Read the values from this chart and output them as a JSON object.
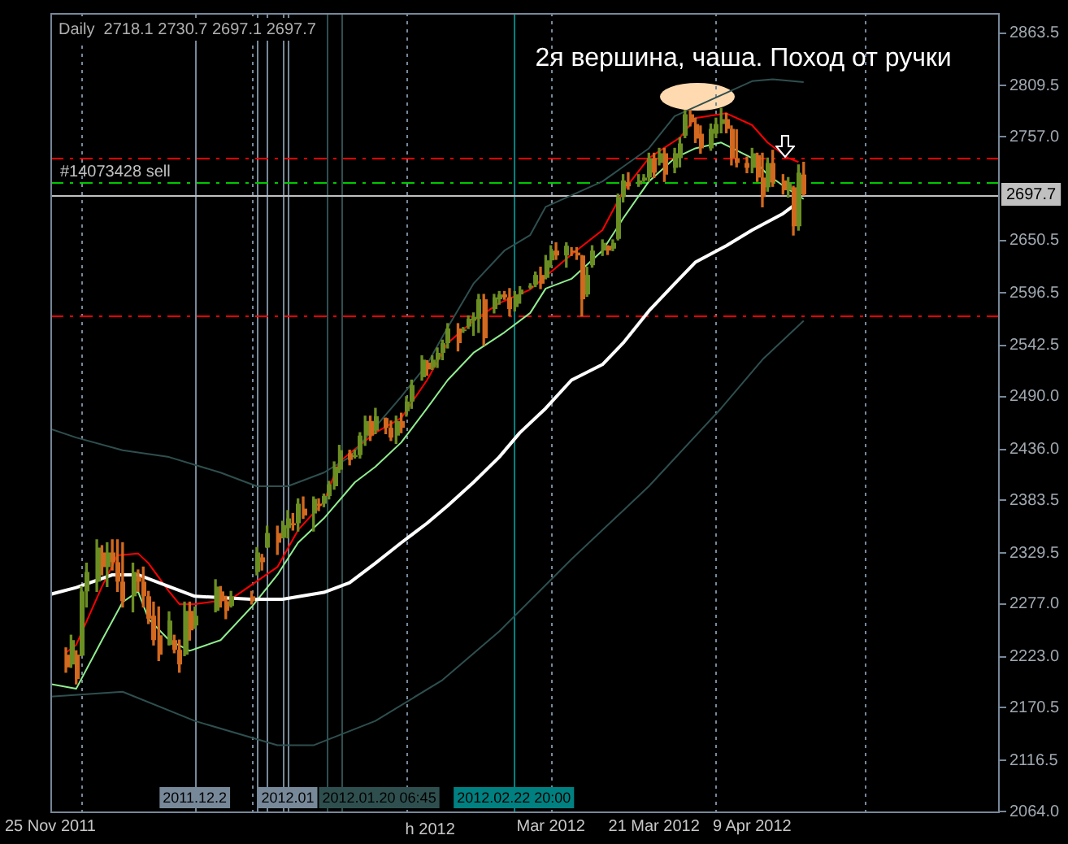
{
  "chart_data": {
    "type": "candlestick",
    "title": "Daily  2718.1 2730.7 2697.1 2697.7",
    "annotations": [
      "2я вершина, чаша. Поход от ручки",
      "h 2012"
    ],
    "x": [
      "2011-11-28",
      "2011-11-29",
      "2011-11-30",
      "2011-12-01",
      "2011-12-02",
      "2011-12-04",
      "2011-12-05",
      "2011-12-06",
      "2011-12-07",
      "2011-12-08",
      "2011-12-09",
      "2011-12-11",
      "2011-12-12",
      "2011-12-13",
      "2011-12-14",
      "2011-12-15",
      "2011-12-16",
      "2011-12-18",
      "2011-12-19",
      "2011-12-20",
      "2011-12-21",
      "2011-12-22",
      "2011-12-23",
      "2011-12-27",
      "2011-12-28",
      "2011-12-29",
      "2011-12-30",
      "2012-01-03",
      "2012-01-04",
      "2012-01-05",
      "2012-01-06",
      "2012-01-08",
      "2012-01-09",
      "2012-01-10",
      "2012-01-11",
      "2012-01-12",
      "2012-01-13",
      "2012-01-15",
      "2012-01-16",
      "2012-01-17",
      "2012-01-18",
      "2012-01-19",
      "2012-01-20",
      "2012-01-22",
      "2012-01-23",
      "2012-01-24",
      "2012-01-25",
      "2012-01-26",
      "2012-01-27",
      "2012-01-29",
      "2012-01-30",
      "2012-01-31",
      "2012-02-01",
      "2012-02-02",
      "2012-02-03",
      "2012-02-05",
      "2012-02-06",
      "2012-02-07",
      "2012-02-08",
      "2012-02-09",
      "2012-02-10",
      "2012-02-12",
      "2012-02-13",
      "2012-02-14",
      "2012-02-15",
      "2012-02-16",
      "2012-02-17",
      "2012-02-19",
      "2012-02-20",
      "2012-02-21",
      "2012-02-22",
      "2012-02-23",
      "2012-02-24",
      "2012-02-26",
      "2012-02-27",
      "2012-02-28",
      "2012-02-29",
      "2012-03-01",
      "2012-03-02",
      "2012-03-04",
      "2012-03-05",
      "2012-03-06",
      "2012-03-07",
      "2012-03-08",
      "2012-03-09",
      "2012-03-11",
      "2012-03-12",
      "2012-03-13",
      "2012-03-14",
      "2012-03-15",
      "2012-03-16",
      "2012-03-18",
      "2012-03-19",
      "2012-03-20",
      "2012-03-21",
      "2012-03-22",
      "2012-03-23",
      "2012-03-25",
      "2012-03-26",
      "2012-03-27",
      "2012-03-28",
      "2012-03-29",
      "2012-03-30",
      "2012-04-01",
      "2012-04-02",
      "2012-04-03",
      "2012-04-04",
      "2012-04-05",
      "2012-04-06",
      "2012-04-08",
      "2012-04-09",
      "2012-04-10",
      "2012-04-11",
      "2012-04-12",
      "2012-04-13",
      "2012-04-15",
      "2012-04-16",
      "2012-04-17",
      "2012-04-18",
      "2012-04-19"
    ],
    "ohlc": [
      [
        2225,
        2232,
        2207,
        2212
      ],
      [
        2215,
        2245,
        2212,
        2240
      ],
      [
        2225,
        2229,
        2195,
        2200
      ],
      [
        2224,
        2295,
        2224,
        2290
      ],
      [
        2290,
        2319,
        2274,
        2310
      ],
      [
        2300,
        2343,
        2290,
        2335
      ],
      [
        2330,
        2337,
        2307,
        2315
      ],
      [
        2315,
        2340,
        2295,
        2330
      ],
      [
        2330,
        2343,
        2312,
        2320
      ],
      [
        2320,
        2343,
        2290,
        2300
      ],
      [
        2300,
        2340,
        2274,
        2280
      ],
      [
        2285,
        2319,
        2269,
        2310
      ],
      [
        2305,
        2312,
        2290,
        2300
      ],
      [
        2300,
        2315,
        2274,
        2285
      ],
      [
        2285,
        2290,
        2257,
        2262
      ],
      [
        2265,
        2279,
        2235,
        2240
      ],
      [
        2245,
        2274,
        2219,
        2225
      ],
      [
        2235,
        2269,
        2235,
        2260
      ],
      [
        2240,
        2245,
        2227,
        2230
      ],
      [
        2230,
        2240,
        2207,
        2215
      ],
      [
        2225,
        2279,
        2224,
        2270
      ],
      [
        2270,
        2279,
        2240,
        2250
      ],
      [
        2255,
        2274,
        2252,
        2265
      ],
      [
        2270,
        2302,
        2269,
        2295
      ],
      [
        2290,
        2295,
        2274,
        2280
      ],
      [
        2280,
        2285,
        2262,
        2270
      ],
      [
        2275,
        2290,
        2274,
        2285
      ],
      [
        2285,
        2290,
        2277,
        2280
      ],
      [
        2310,
        2335,
        2307,
        2330
      ],
      [
        2325,
        2328,
        2312,
        2320
      ],
      [
        2335,
        2357,
        2335,
        2350
      ],
      [
        2350,
        2357,
        2328,
        2340
      ],
      [
        2345,
        2362,
        2345,
        2358
      ],
      [
        2355,
        2373,
        2345,
        2365
      ],
      [
        2360,
        2370,
        2353,
        2358
      ],
      [
        2360,
        2385,
        2352,
        2380
      ],
      [
        2375,
        2387,
        2365,
        2368
      ],
      [
        2370,
        2387,
        2352,
        2385
      ],
      [
        2380,
        2385,
        2373,
        2378
      ],
      [
        2380,
        2390,
        2377,
        2388
      ],
      [
        2388,
        2403,
        2385,
        2400
      ],
      [
        2398,
        2423,
        2395,
        2418
      ],
      [
        2415,
        2440,
        2412,
        2435
      ],
      [
        2432,
        2435,
        2420,
        2425
      ],
      [
        2428,
        2435,
        2427,
        2430
      ],
      [
        2430,
        2453,
        2427,
        2450
      ],
      [
        2450,
        2470,
        2440,
        2465
      ],
      [
        2465,
        2470,
        2445,
        2450
      ],
      [
        2455,
        2478,
        2452,
        2470
      ],
      [
        2468,
        2468,
        2452,
        2458
      ],
      [
        2458,
        2465,
        2445,
        2448
      ],
      [
        2450,
        2470,
        2442,
        2465
      ],
      [
        2465,
        2473,
        2453,
        2458
      ],
      [
        2475,
        2490,
        2470,
        2485
      ],
      [
        2485,
        2507,
        2478,
        2502
      ],
      [
        2510,
        2532,
        2507,
        2528
      ],
      [
        2525,
        2527,
        2512,
        2518
      ],
      [
        2520,
        2532,
        2518,
        2528
      ],
      [
        2528,
        2540,
        2520,
        2535
      ],
      [
        2535,
        2548,
        2528,
        2545
      ],
      [
        2545,
        2565,
        2540,
        2560
      ],
      [
        2560,
        2565,
        2537,
        2545
      ],
      [
        2558,
        2561,
        2556,
        2559
      ],
      [
        2562,
        2573,
        2560,
        2570
      ],
      [
        2568,
        2576,
        2553,
        2572
      ],
      [
        2570,
        2595,
        2556,
        2590
      ],
      [
        2590,
        2595,
        2543,
        2550
      ],
      [
        2580,
        2595,
        2576,
        2592
      ],
      [
        2590,
        2598,
        2585,
        2595
      ],
      [
        2595,
        2598,
        2590,
        2592
      ],
      [
        2592,
        2601,
        2573,
        2580
      ],
      [
        2582,
        2598,
        2578,
        2595
      ],
      [
        2595,
        2603,
        2586,
        2600
      ],
      [
        2602,
        2606,
        2601,
        2604
      ],
      [
        2605,
        2618,
        2603,
        2615
      ],
      [
        2615,
        2623,
        2601,
        2606
      ],
      [
        2612,
        2635,
        2611,
        2630
      ],
      [
        2630,
        2645,
        2623,
        2640
      ],
      [
        2640,
        2648,
        2631,
        2635
      ],
      [
        2635,
        2648,
        2623,
        2645
      ],
      [
        2640,
        2643,
        2635,
        2638
      ],
      [
        2638,
        2643,
        2631,
        2635
      ],
      [
        2635,
        2635,
        2573,
        2590
      ],
      [
        2595,
        2623,
        2593,
        2615
      ],
      [
        2625,
        2645,
        2623,
        2640
      ],
      [
        2640,
        2651,
        2635,
        2648
      ],
      [
        2645,
        2645,
        2636,
        2640
      ],
      [
        2642,
        2651,
        2640,
        2648
      ],
      [
        2652,
        2698,
        2651,
        2695
      ],
      [
        2695,
        2718,
        2690,
        2712
      ],
      [
        2710,
        2720,
        2703,
        2706
      ],
      [
        2708,
        2718,
        2706,
        2712
      ],
      [
        2712,
        2718,
        2711,
        2715
      ],
      [
        2715,
        2740,
        2711,
        2735
      ],
      [
        2735,
        2740,
        2715,
        2720
      ],
      [
        2730,
        2745,
        2728,
        2740
      ],
      [
        2740,
        2745,
        2711,
        2718
      ],
      [
        2725,
        2745,
        2720,
        2740
      ],
      [
        2735,
        2756,
        2726,
        2750
      ],
      [
        2758,
        2784,
        2756,
        2780
      ],
      [
        2780,
        2784,
        2768,
        2772
      ],
      [
        2770,
        2776,
        2751,
        2755
      ],
      [
        2760,
        2768,
        2740,
        2745
      ],
      [
        2745,
        2770,
        2743,
        2765
      ],
      [
        2760,
        2776,
        2756,
        2770
      ],
      [
        2770,
        2786,
        2761,
        2775
      ],
      [
        2775,
        2781,
        2761,
        2765
      ],
      [
        2765,
        2768,
        2728,
        2735
      ],
      [
        2735,
        2764,
        2726,
        2730
      ],
      [
        2730,
        2736,
        2720,
        2725
      ],
      [
        2725,
        2745,
        2720,
        2740
      ],
      [
        2738,
        2740,
        2711,
        2715
      ],
      [
        2715,
        2740,
        2685,
        2695
      ],
      [
        2705,
        2735,
        2701,
        2730
      ],
      [
        2730,
        2743,
        2706,
        2710
      ],
      [
        2712,
        2718,
        2698,
        2702
      ],
      [
        2702,
        2715,
        2695,
        2710
      ],
      [
        2705,
        2706,
        2656,
        2665
      ],
      [
        2665,
        2728,
        2661,
        2720
      ],
      [
        2718.1,
        2730.7,
        2697.1,
        2697.7
      ]
    ],
    "series": [
      {
        "type": "line",
        "color": "#2f4f4f",
        "x": [
          "2011-11-25",
          "2011-11-30",
          "2011-12-09",
          "2011-12-18",
          "2011-12-28",
          "2012-01-04",
          "2012-01-10",
          "2012-01-17",
          "2012-01-22",
          "2012-02-01",
          "2012-02-06",
          "2012-02-10",
          "2012-02-15",
          "2012-02-21",
          "2012-02-26",
          "2012-02-29",
          "2012-03-11",
          "2012-03-20",
          "2012-03-25",
          "2012-04-09",
          "2012-04-13",
          "2012-04-19"
        ],
        "values": [
          2457,
          2448,
          2435,
          2428,
          2412,
          2398,
          2398,
          2412,
          2428,
          2490,
          2523,
          2561,
          2606,
          2640,
          2656,
          2685,
          2711,
          2745,
          2778,
          2814,
          2816,
          2813
        ]
      },
      {
        "type": "line",
        "color": "#2f4f4f",
        "x": [
          "2011-11-25",
          "2011-12-09",
          "2011-12-23",
          "2012-01-08",
          "2012-01-15",
          "2012-01-27",
          "2012-02-09",
          "2012-02-20",
          "2012-03-05",
          "2012-03-20",
          "2012-04-03",
          "2012-04-11",
          "2012-04-19"
        ],
        "values": [
          2182,
          2187,
          2157,
          2132,
          2132,
          2157,
          2199,
          2249,
          2323,
          2398,
          2478,
          2528,
          2568
        ]
      },
      {
        "type": "line",
        "color": "#ffffff",
        "x": [
          "2011-11-25",
          "2011-11-30",
          "2011-12-07",
          "2011-12-12",
          "2011-12-18",
          "2011-12-23",
          "2012-01-03",
          "2012-01-09",
          "2012-01-17",
          "2012-01-22",
          "2012-01-27",
          "2012-02-01",
          "2012-02-06",
          "2012-02-10",
          "2012-02-15",
          "2012-02-20",
          "2012-02-24",
          "2012-02-29",
          "2012-03-05",
          "2012-03-11",
          "2012-03-15",
          "2012-03-20",
          "2012-03-25",
          "2012-03-29",
          "2012-04-04",
          "2012-04-09",
          "2012-04-15",
          "2012-04-18"
        ],
        "values": [
          2287,
          2294,
          2307,
          2307,
          2295,
          2285,
          2282,
          2282,
          2289,
          2299,
          2319,
          2340,
          2360,
          2378,
          2402,
          2428,
          2453,
          2478,
          2507,
          2523,
          2545,
          2578,
          2606,
          2628,
          2645,
          2661,
          2678,
          2690
        ]
      },
      {
        "type": "line",
        "color": "#90ee90",
        "x": [
          "2011-11-25",
          "2011-11-30",
          "2011-12-05",
          "2011-12-09",
          "2011-12-12",
          "2011-12-14",
          "2011-12-18",
          "2011-12-22",
          "2011-12-28",
          "2012-01-03",
          "2012-01-08",
          "2012-01-12",
          "2012-01-17",
          "2012-01-23",
          "2012-01-27",
          "2012-02-01",
          "2012-02-06",
          "2012-02-10",
          "2012-02-15",
          "2012-02-21",
          "2012-02-26",
          "2012-02-29",
          "2012-03-05",
          "2012-03-11",
          "2012-03-15",
          "2012-03-20",
          "2012-03-25",
          "2012-03-29",
          "2012-04-03",
          "2012-04-09",
          "2012-04-12",
          "2012-04-16",
          "2012-04-19"
        ],
        "values": [
          2195,
          2190,
          2240,
          2279,
          2290,
          2262,
          2240,
          2229,
          2240,
          2274,
          2307,
          2340,
          2365,
          2402,
          2418,
          2443,
          2478,
          2507,
          2535,
          2556,
          2576,
          2601,
          2611,
          2640,
          2673,
          2711,
          2735,
          2745,
          2751,
          2735,
          2718,
          2703,
          2693
        ]
      },
      {
        "type": "line",
        "color": "#ff0000",
        "x": [
          "2011-11-28",
          "2011-11-30",
          "2011-12-05",
          "2011-12-08",
          "2011-12-12",
          "2011-12-14",
          "2011-12-18",
          "2011-12-20",
          "2011-12-23",
          "2011-12-30",
          "2012-01-08",
          "2012-01-12",
          "2012-01-17",
          "2012-01-20",
          "2012-01-27",
          "2012-02-01",
          "2012-02-06",
          "2012-02-10",
          "2012-02-15",
          "2012-02-20",
          "2012-02-26",
          "2012-03-05",
          "2012-03-11",
          "2012-03-15",
          "2012-03-20",
          "2012-03-26",
          "2012-03-29",
          "2012-04-04",
          "2012-04-09",
          "2012-04-12",
          "2012-04-16",
          "2012-04-18"
        ],
        "values": [
          2227,
          2235,
          2295,
          2327,
          2329,
          2319,
          2290,
          2277,
          2277,
          2282,
          2315,
          2353,
          2382,
          2423,
          2453,
          2468,
          2507,
          2545,
          2568,
          2586,
          2600,
          2636,
          2661,
          2701,
          2735,
          2756,
          2776,
          2781,
          2769,
          2751,
          2735,
          2731
        ]
      }
    ],
    "xlim": [
      "2011-11-25",
      "2012-05-27"
    ],
    "xticks": [
      {
        "value": "2011-11-25",
        "label": "25 Nov 2011"
      },
      {
        "value": "2012-03",
        "label": "Mar 2012"
      },
      {
        "value": "2012-03-21",
        "label": "21 Mar 2012"
      },
      {
        "value": "2012-04-09",
        "label": "9 Apr 2012"
      }
    ],
    "ylim": [
      2064,
      2884
    ],
    "yticks": [
      2863.5,
      2809.5,
      {
        "value": 2757,
        "label": "2757.0"
      },
      2650.5,
      2596.5,
      2542.5,
      {
        "value": 2490,
        "label": "2490.0"
      },
      {
        "value": 2436,
        "label": "2436.0"
      },
      2383.5,
      2329.5,
      {
        "value": 2277,
        "label": "2277.0"
      },
      {
        "value": 2223,
        "label": "2223.0"
      },
      2170.5,
      2116.5,
      {
        "value": 2064,
        "label": "2064.0"
      }
    ],
    "ref_lines": [
      {
        "axis": "x",
        "value": "2011-12-01",
        "color": "#778899",
        "line_style": "dotted"
      },
      {
        "axis": "x",
        "value": "2012-01-03",
        "color": "#778899",
        "line_style": "dotted"
      },
      {
        "axis": "x",
        "value": "2012-02-02",
        "color": "#778899",
        "line_style": "dotted"
      },
      {
        "axis": "x",
        "value": "2012-03-01",
        "color": "#778899",
        "line_style": "dotted"
      },
      {
        "axis": "x",
        "value": "2012-04-02",
        "color": "#778899",
        "line_style": "dotted"
      },
      {
        "axis": "x",
        "value": "2012-05-01",
        "color": "#778899",
        "line_style": "dotted"
      },
      {
        "axis": "x",
        "value": "2011-12-23",
        "color": "#778899",
        "line_style": "solid",
        "label": "2011.12.2"
      },
      {
        "axis": "x",
        "value": "2012-01-04",
        "color": "#778899",
        "line_style": "solid"
      },
      {
        "axis": "x",
        "value": "2012-01-06",
        "color": "#778899",
        "line_style": "solid"
      },
      {
        "axis": "x",
        "value": "2012-01-09",
        "color": "#778899",
        "line_style": "solid"
      },
      {
        "axis": "x",
        "value": "2012-01-10",
        "color": "#778899",
        "line_style": "solid",
        "label": "2012.01"
      },
      {
        "axis": "x",
        "value": "2012-01-17T12:00",
        "color": "#2f4f4f",
        "line_style": "solid"
      },
      {
        "axis": "x",
        "value": "2012-01-20T06:45",
        "color": "#2f4f4f",
        "line_style": "solid",
        "label": "2012.01.20 06:45"
      },
      {
        "axis": "x",
        "value": "2012-02-22T20:00",
        "color": "#008080",
        "line_style": "solid",
        "label": "2012.02.22 20:00"
      },
      {
        "axis": "y",
        "value": 2735.4,
        "color": "#ff0000",
        "line_style": "dashed"
      },
      {
        "axis": "y",
        "value": 2710.4,
        "color": "#00c800",
        "line_style": "dashed",
        "label": "#14073428 sell"
      },
      {
        "axis": "y",
        "value": 2697.7,
        "color": "#c0c0c0",
        "line_style": "solid",
        "label": "2697.7"
      },
      {
        "axis": "y",
        "value": 2573,
        "color": "#ff0000",
        "line_style": "dashed"
      }
    ],
    "marker": "none"
  }
}
